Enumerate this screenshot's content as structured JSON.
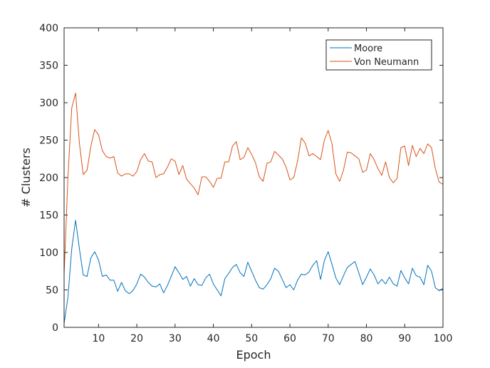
{
  "chart_data": {
    "type": "line",
    "title": "",
    "xlabel": "Epoch",
    "ylabel": "# Clusters",
    "xlim": [
      1,
      100
    ],
    "ylim": [
      0,
      400
    ],
    "xticks": [
      10,
      20,
      30,
      40,
      50,
      60,
      70,
      80,
      90,
      100
    ],
    "yticks": [
      0,
      50,
      100,
      150,
      200,
      250,
      300,
      350,
      400
    ],
    "grid": false,
    "legend_position": "top-right",
    "series": [
      {
        "name": "Moore",
        "color": "#0072BD",
        "x": [
          1,
          2,
          3,
          4,
          5,
          6,
          7,
          8,
          9,
          10,
          11,
          12,
          13,
          14,
          15,
          16,
          17,
          18,
          19,
          20,
          21,
          22,
          23,
          24,
          25,
          26,
          27,
          28,
          29,
          30,
          31,
          32,
          33,
          34,
          35,
          36,
          37,
          38,
          39,
          40,
          41,
          42,
          43,
          44,
          45,
          46,
          47,
          48,
          49,
          50,
          51,
          52,
          53,
          54,
          55,
          56,
          57,
          58,
          59,
          60,
          61,
          62,
          63,
          64,
          65,
          66,
          67,
          68,
          69,
          70,
          71,
          72,
          73,
          74,
          75,
          76,
          77,
          78,
          79,
          80,
          81,
          82,
          83,
          84,
          85,
          86,
          87,
          88,
          89,
          90,
          91,
          92,
          93,
          94,
          95,
          96,
          97,
          98,
          99,
          100
        ],
        "values": [
          5,
          40,
          105,
          143,
          105,
          70,
          68,
          93,
          101,
          90,
          68,
          70,
          63,
          63,
          48,
          60,
          49,
          45,
          49,
          58,
          71,
          67,
          60,
          55,
          54,
          58,
          46,
          56,
          68,
          81,
          73,
          64,
          68,
          55,
          65,
          57,
          56,
          66,
          71,
          58,
          50,
          42,
          65,
          72,
          80,
          84,
          73,
          68,
          87,
          75,
          63,
          53,
          51,
          57,
          65,
          79,
          75,
          64,
          53,
          57,
          50,
          63,
          71,
          70,
          74,
          83,
          89,
          64,
          89,
          101,
          84,
          66,
          57,
          69,
          80,
          84,
          88,
          73,
          57,
          67,
          78,
          70,
          58,
          64,
          58,
          67,
          58,
          55,
          76,
          66,
          58,
          79,
          69,
          67,
          57,
          83,
          75,
          53,
          49,
          52
        ]
      },
      {
        "name": "Von Neumann",
        "color": "#D95319",
        "x": [
          1,
          2,
          3,
          4,
          5,
          6,
          7,
          8,
          9,
          10,
          11,
          12,
          13,
          14,
          15,
          16,
          17,
          18,
          19,
          20,
          21,
          22,
          23,
          24,
          25,
          26,
          27,
          28,
          29,
          30,
          31,
          32,
          33,
          34,
          35,
          36,
          37,
          38,
          39,
          40,
          41,
          42,
          43,
          44,
          45,
          46,
          47,
          48,
          49,
          50,
          51,
          52,
          53,
          54,
          55,
          56,
          57,
          58,
          59,
          60,
          61,
          62,
          63,
          64,
          65,
          66,
          67,
          68,
          69,
          70,
          71,
          72,
          73,
          74,
          75,
          76,
          77,
          78,
          79,
          80,
          81,
          82,
          83,
          84,
          85,
          86,
          87,
          88,
          89,
          90,
          91,
          92,
          93,
          94,
          95,
          96,
          97,
          98,
          99,
          100
        ],
        "values": [
          70,
          200,
          293,
          313,
          246,
          204,
          210,
          242,
          264,
          257,
          236,
          228,
          226,
          228,
          206,
          202,
          205,
          205,
          202,
          208,
          224,
          232,
          222,
          221,
          200,
          204,
          205,
          214,
          225,
          222,
          204,
          216,
          198,
          192,
          186,
          177,
          201,
          201,
          195,
          187,
          199,
          199,
          221,
          221,
          242,
          248,
          224,
          227,
          240,
          231,
          220,
          201,
          195,
          219,
          221,
          235,
          230,
          225,
          214,
          197,
          200,
          222,
          253,
          246,
          229,
          232,
          228,
          224,
          250,
          263,
          245,
          205,
          195,
          210,
          234,
          233,
          229,
          225,
          207,
          210,
          232,
          224,
          212,
          203,
          221,
          200,
          193,
          199,
          240,
          242,
          216,
          243,
          228,
          239,
          232,
          245,
          240,
          212,
          194,
          191
        ]
      }
    ]
  }
}
